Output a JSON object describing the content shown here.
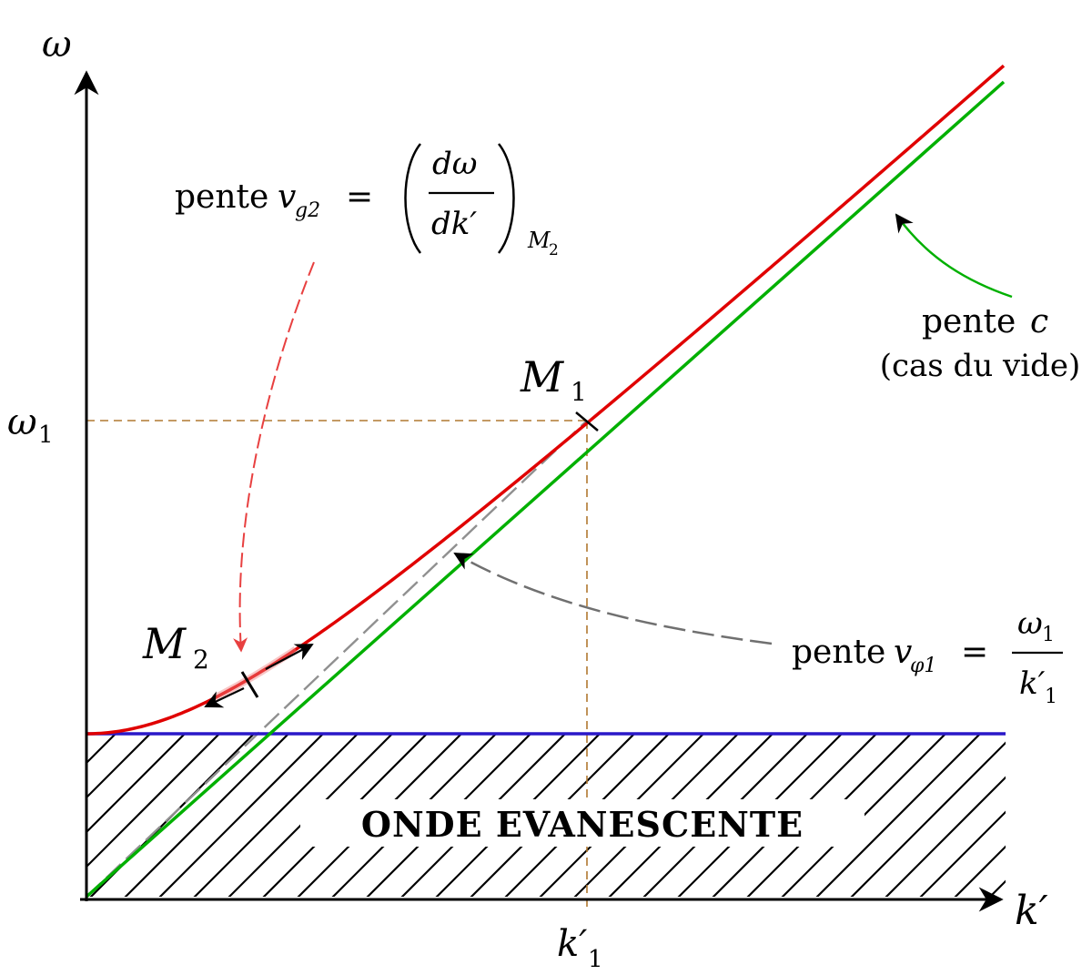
{
  "axes": {
    "y_label": "ω",
    "x_label": "k′",
    "omega1_label": "ω",
    "omega1_sub": "1",
    "k1_label": "k′",
    "k1_sub": "1"
  },
  "points": {
    "m1_label": "M",
    "m1_sub": "1",
    "m2_label": "M",
    "m2_sub": "2"
  },
  "zone": {
    "label": "ONDE EVANESCENTE"
  },
  "annotations": {
    "vg2": {
      "word": "pente",
      "symbol": "v",
      "sub": "g2",
      "equals": "=",
      "num": "dω",
      "den": "dk′",
      "at": "M",
      "at_sub": "2"
    },
    "c": {
      "line1_word": "pente",
      "line1_symbol": "c",
      "line2": "(cas du vide)"
    },
    "vphi1": {
      "word": "pente",
      "symbol": "v",
      "sub": "φ1",
      "equals": "=",
      "num": "ω",
      "num_sub": "1",
      "den": "k′",
      "den_sub": "1"
    }
  },
  "colors": {
    "dispersion_curve": "#e00000",
    "vacuum_line": "#00b000",
    "cutoff_line": "#2a18c8",
    "guide_lines": "#b07830",
    "phase_line": "#909090",
    "vg2_arrow": "#e84040",
    "c_arrow": "#00b000",
    "vphi_arrow": "#707070",
    "ink": "#000000"
  }
}
